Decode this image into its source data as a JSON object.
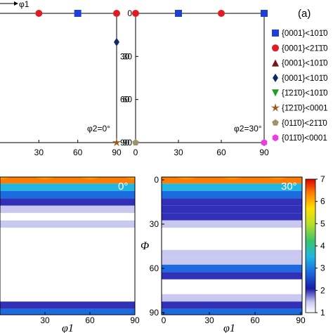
{
  "figure": {
    "panel_label": "(a)",
    "top_axis_label": "φ1",
    "top_left_note": "φ2=0°",
    "top_right_note": "φ2=30°",
    "bottom_left_note": "0°",
    "bottom_right_note": "30°",
    "bottom_xlabel": "φ1",
    "bottom_ylabel": "Φ"
  },
  "colors": {
    "basal_prismatic_a": "#1f3fd6",
    "basal_prismatic_b": "#e01b24",
    "basal_pyramidal": "#7a1414",
    "basal_diamond": "#102a66",
    "prismatic_prismatic": "#1e9e2a",
    "prismatic_basal": "#9a5a1e",
    "pyramidal_prismatic": "#9c9468",
    "pyramidal_basal": "#e83fe0"
  },
  "legend": [
    {
      "marker": "square",
      "color": "#1f3fd6",
      "label": "{0001}<101̄0"
    },
    {
      "marker": "circle",
      "color": "#e01b24",
      "label": "{0001}<21̄1̄0"
    },
    {
      "marker": "triangle-up",
      "color": "#7a1414",
      "label": "{0001}<101̄0"
    },
    {
      "marker": "diamond",
      "color": "#102a66",
      "label": "{0001}<101̄0"
    },
    {
      "marker": "triangle-down",
      "color": "#1e9e2a",
      "label": "{1̄21̄0}<101̄0"
    },
    {
      "marker": "star",
      "color": "#9a5a1e",
      "label": "{1̄21̄0}<0001"
    },
    {
      "marker": "pentagon",
      "color": "#9c9468",
      "label": "{011̄0}<21̄1̄0"
    },
    {
      "marker": "hexagon",
      "color": "#e83fe0",
      "label": "{011̄0}<0001"
    }
  ],
  "chart_data": [
    {
      "type": "scatter",
      "id": "top-left",
      "xlim": [
        0,
        90
      ],
      "ylim": [
        0,
        90
      ],
      "xticks": [
        30,
        60,
        90
      ],
      "yticks": [
        30,
        60,
        90
      ],
      "points": [
        {
          "x": 30,
          "y": 0,
          "marker": "circle",
          "color": "#e01b24"
        },
        {
          "x": 60,
          "y": 0,
          "marker": "square",
          "color": "#1f3fd6"
        },
        {
          "x": 90,
          "y": 0,
          "marker": "circle",
          "color": "#e01b24"
        },
        {
          "x": 90,
          "y": 20,
          "marker": "diamond",
          "color": "#102a66"
        },
        {
          "x": 90,
          "y": 90,
          "marker": "star",
          "color": "#9a5a1e"
        }
      ]
    },
    {
      "type": "scatter",
      "id": "top-right",
      "xlim": [
        0,
        90
      ],
      "ylim": [
        0,
        90
      ],
      "xticks": [
        0,
        30,
        60,
        90
      ],
      "yticks": [
        0,
        30,
        60,
        90
      ],
      "points": [
        {
          "x": 0,
          "y": 0,
          "marker": "circle",
          "color": "#e01b24"
        },
        {
          "x": 30,
          "y": 0,
          "marker": "square",
          "color": "#1f3fd6"
        },
        {
          "x": 60,
          "y": 0,
          "marker": "circle",
          "color": "#e01b24"
        },
        {
          "x": 90,
          "y": 0,
          "marker": "square",
          "color": "#1f3fd6"
        },
        {
          "x": 0,
          "y": 90,
          "marker": "pentagon",
          "color": "#9c9468"
        },
        {
          "x": 90,
          "y": 90,
          "marker": "hexagon",
          "color": "#e83fe0"
        }
      ]
    },
    {
      "type": "heatmap",
      "id": "bottom-left",
      "xlim": [
        0,
        90
      ],
      "ylim": [
        0,
        90
      ],
      "xticks": [
        30,
        60,
        90
      ],
      "yticks": [],
      "rows_phi": [
        0,
        5,
        10,
        15,
        20,
        25,
        30,
        35,
        40,
        45,
        50,
        55,
        60,
        65,
        70,
        75,
        80,
        85,
        90
      ],
      "levels": [
        7.0,
        3.2,
        2.4,
        2.0,
        1.7,
        1.2,
        1.4,
        1.1,
        1.0,
        1.0,
        1.0,
        1.0,
        1.0,
        1.0,
        1.0,
        1.0,
        1.2,
        2.2,
        2.6
      ],
      "top_peaks_phi1": [
        0,
        30,
        60,
        90
      ]
    },
    {
      "type": "heatmap",
      "id": "bottom-right",
      "xlim": [
        0,
        90
      ],
      "ylim": [
        0,
        90
      ],
      "xticks": [
        0,
        30,
        60,
        90
      ],
      "yticks": [
        0,
        30,
        60,
        90
      ],
      "rows_phi": [
        0,
        5,
        10,
        15,
        20,
        25,
        30,
        35,
        40,
        45,
        50,
        55,
        60,
        65,
        70,
        75,
        80,
        85,
        90
      ],
      "levels": [
        7.0,
        3.4,
        2.6,
        2.3,
        2.0,
        1.9,
        1.4,
        1.2,
        1.1,
        1.2,
        1.4,
        1.6,
        2.4,
        2.0,
        1.3,
        1.0,
        1.6,
        2.2,
        2.4
      ],
      "top_peaks_phi1": [
        15,
        45,
        75
      ]
    }
  ],
  "colorbar": {
    "min": 1,
    "max": 7,
    "ticks": [
      "1",
      "2",
      "3",
      "4",
      "5",
      "6",
      "7"
    ]
  }
}
